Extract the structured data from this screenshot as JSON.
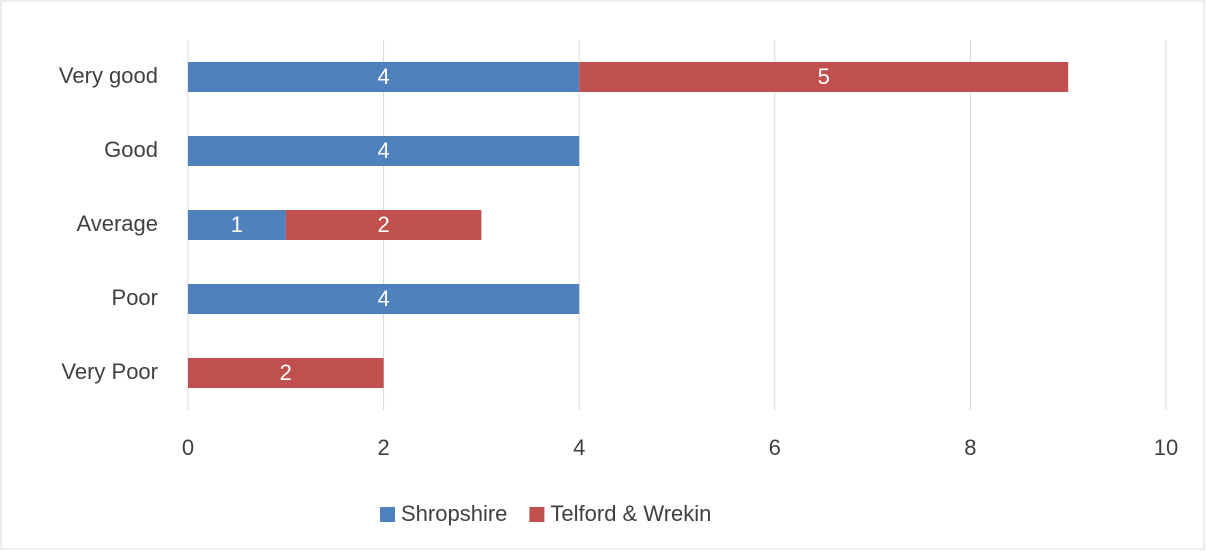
{
  "chart_data": {
    "type": "stacked_barh",
    "categories": [
      "Very good",
      "Good",
      "Average",
      "Poor",
      "Very Poor"
    ],
    "series": [
      {
        "name": "Shropshire",
        "color": "#4f81bd",
        "values": [
          4,
          4,
          1,
          4,
          null
        ]
      },
      {
        "name": "Telford & Wrekin",
        "color": "#c0504d",
        "values": [
          5,
          null,
          2,
          null,
          2
        ]
      }
    ],
    "xlim": [
      0,
      10
    ],
    "xticks": [
      0,
      2,
      4,
      6,
      8,
      10
    ],
    "grid": true,
    "legend": "bottom"
  }
}
